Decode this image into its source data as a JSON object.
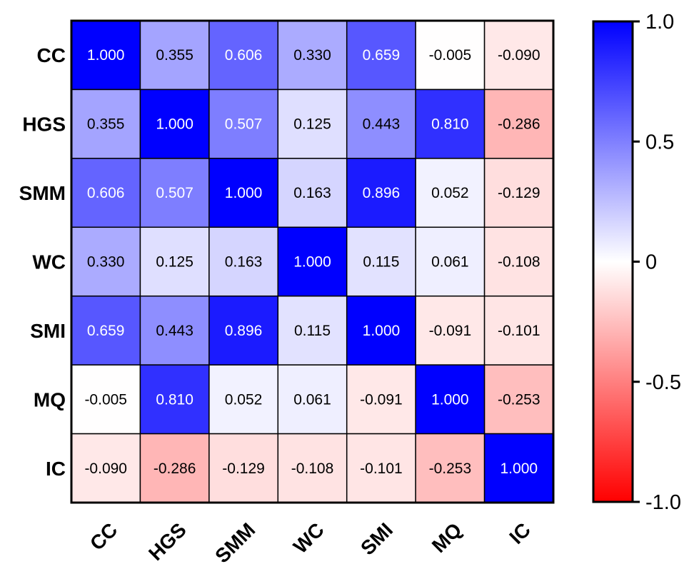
{
  "chart_data": {
    "type": "heatmap",
    "title": "",
    "xlabel": "",
    "ylabel": "",
    "categories": [
      "CC",
      "HGS",
      "SMM",
      "WC",
      "SMI",
      "MQ",
      "IC"
    ],
    "matrix": [
      [
        1.0,
        0.355,
        0.606,
        0.33,
        0.659,
        -0.005,
        -0.09
      ],
      [
        0.355,
        1.0,
        0.507,
        0.125,
        0.443,
        0.81,
        -0.286
      ],
      [
        0.606,
        0.507,
        1.0,
        0.163,
        0.896,
        0.052,
        -0.129
      ],
      [
        0.33,
        0.125,
        0.163,
        1.0,
        0.115,
        0.061,
        -0.108
      ],
      [
        0.659,
        0.443,
        0.896,
        0.115,
        1.0,
        -0.091,
        -0.101
      ],
      [
        -0.005,
        0.81,
        0.052,
        0.061,
        -0.091,
        1.0,
        -0.253
      ],
      [
        -0.09,
        -0.286,
        -0.129,
        -0.108,
        -0.101,
        -0.253,
        1.0
      ]
    ],
    "cell_labels": [
      [
        "1.000",
        "0.355",
        "0.606",
        "0.330",
        "0.659",
        "-0.005",
        "-0.090"
      ],
      [
        "0.355",
        "1.000",
        "0.507",
        "0.125",
        "0.443",
        "0.810",
        "-0.286"
      ],
      [
        "0.606",
        "0.507",
        "1.000",
        "0.163",
        "0.896",
        "0.052",
        "-0.129"
      ],
      [
        "0.330",
        "0.125",
        "0.163",
        "1.000",
        "0.115",
        "0.061",
        "-0.108"
      ],
      [
        "0.659",
        "0.443",
        "0.896",
        "0.115",
        "1.000",
        "-0.091",
        "-0.101"
      ],
      [
        "-0.005",
        "0.810",
        "0.052",
        "0.061",
        "-0.091",
        "1.000",
        "-0.253"
      ],
      [
        "-0.090",
        "-0.286",
        "-0.129",
        "-0.108",
        "-0.101",
        "-0.253",
        "1.000"
      ]
    ],
    "colorbar": {
      "range": [
        -1.0,
        1.0
      ],
      "ticks": [
        {
          "value": 1.0,
          "label": "1.0"
        },
        {
          "value": 0.5,
          "label": "0.5"
        },
        {
          "value": 0,
          "label": "0"
        },
        {
          "value": -0.5,
          "label": "-0.5"
        },
        {
          "value": -1.0,
          "label": "-1.0"
        }
      ],
      "colors": {
        "negative": "#ff0000",
        "neutral": "#ffffff",
        "positive": "#0000ff"
      },
      "placement": "right"
    },
    "x_tick_rotation": "-45 degrees",
    "grid": true,
    "legend": false
  }
}
